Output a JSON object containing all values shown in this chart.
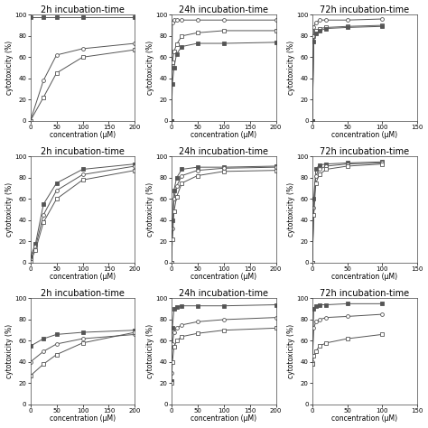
{
  "title_fontsize": 7,
  "axis_label_fontsize": 5.5,
  "tick_fontsize": 5,
  "figure_bg": "#ffffff",
  "rows": [
    {
      "cols": [
        {
          "title": "2h incubation-time",
          "xlabel": "concentration (μM)",
          "ylabel": "cytotoxicity (%)",
          "xlim": [
            0,
            200
          ],
          "ylim": [
            0,
            100
          ],
          "xticks": [
            0,
            50,
            100,
            150,
            200
          ],
          "yticks": [
            0,
            20,
            40,
            60,
            80,
            100
          ],
          "show_yticks": false,
          "series": [
            {
              "x": [
                0,
                25,
                50,
                100,
                200
              ],
              "y": [
                98,
                98,
                98,
                98,
                98
              ],
              "marker": "s",
              "filled": true,
              "color": "#555555",
              "linestyle": "-"
            },
            {
              "x": [
                0,
                25,
                50,
                100,
                200
              ],
              "y": [
                0,
                38,
                62,
                68,
                73
              ],
              "marker": "o",
              "filled": false,
              "color": "#555555",
              "linestyle": "-"
            },
            {
              "x": [
                0,
                25,
                50,
                100,
                200
              ],
              "y": [
                0,
                22,
                45,
                60,
                67
              ],
              "marker": "s",
              "filled": false,
              "color": "#555555",
              "linestyle": "-"
            }
          ]
        },
        {
          "title": "24h incubation-time",
          "xlabel": "concentration (μM)",
          "ylabel": "cytotoxicity (%)",
          "xlim": [
            0,
            200
          ],
          "ylim": [
            0,
            100
          ],
          "xticks": [
            0,
            50,
            100,
            150,
            200
          ],
          "yticks": [
            0,
            20,
            40,
            60,
            80,
            100
          ],
          "show_yticks": true,
          "series": [
            {
              "x": [
                0,
                2,
                5,
                10,
                20,
                50,
                100,
                200
              ],
              "y": [
                0,
                93,
                95,
                95,
                95,
                95,
                95,
                95
              ],
              "marker": "o",
              "filled": false,
              "color": "#555555",
              "linestyle": "-"
            },
            {
              "x": [
                0,
                2,
                5,
                10,
                20,
                50,
                100,
                200
              ],
              "y": [
                0,
                55,
                65,
                72,
                80,
                83,
                85,
                85
              ],
              "marker": "s",
              "filled": false,
              "color": "#555555",
              "linestyle": "-"
            },
            {
              "x": [
                0,
                2,
                5,
                10,
                20,
                50,
                100,
                200
              ],
              "y": [
                0,
                35,
                50,
                63,
                70,
                73,
                73,
                74
              ],
              "marker": "s",
              "filled": true,
              "color": "#555555",
              "linestyle": "-"
            }
          ]
        },
        {
          "title": "72h incubation-time",
          "xlabel": "concentration (μM)",
          "ylabel": "cytotoxicity (%)",
          "xlim": [
            0,
            150
          ],
          "ylim": [
            0,
            100
          ],
          "xticks": [
            0,
            50,
            100,
            150
          ],
          "yticks": [
            0,
            20,
            40,
            60,
            80,
            100
          ],
          "show_yticks": true,
          "series": [
            {
              "x": [
                0,
                2,
                5,
                10,
                20,
                50,
                100
              ],
              "y": [
                0,
                88,
                93,
                95,
                95,
                95,
                96
              ],
              "marker": "o",
              "filled": false,
              "color": "#555555",
              "linestyle": "-"
            },
            {
              "x": [
                0,
                2,
                5,
                10,
                20,
                50,
                100
              ],
              "y": [
                0,
                80,
                85,
                87,
                88,
                89,
                90
              ],
              "marker": "s",
              "filled": false,
              "color": "#555555",
              "linestyle": "-"
            },
            {
              "x": [
                0,
                2,
                5,
                10,
                20,
                50,
                100
              ],
              "y": [
                0,
                75,
                82,
                85,
                87,
                88,
                89
              ],
              "marker": "s",
              "filled": true,
              "color": "#555555",
              "linestyle": "-"
            }
          ]
        }
      ]
    },
    {
      "cols": [
        {
          "title": "2h incubation-time",
          "xlabel": "concentration (μM)",
          "ylabel": "cytotoxicity (%)",
          "xlim": [
            0,
            200
          ],
          "ylim": [
            0,
            100
          ],
          "xticks": [
            0,
            50,
            100,
            150,
            200
          ],
          "yticks": [
            0,
            20,
            40,
            60,
            80,
            100
          ],
          "show_yticks": false,
          "series": [
            {
              "x": [
                0,
                10,
                25,
                50,
                100,
                200
              ],
              "y": [
                5,
                18,
                55,
                75,
                88,
                93
              ],
              "marker": "s",
              "filled": true,
              "color": "#555555",
              "linestyle": "-"
            },
            {
              "x": [
                0,
                10,
                25,
                50,
                100,
                200
              ],
              "y": [
                3,
                15,
                45,
                68,
                83,
                91
              ],
              "marker": "o",
              "filled": false,
              "color": "#555555",
              "linestyle": "-"
            },
            {
              "x": [
                0,
                10,
                25,
                50,
                100,
                200
              ],
              "y": [
                1,
                12,
                38,
                60,
                78,
                87
              ],
              "marker": "s",
              "filled": false,
              "color": "#555555",
              "linestyle": "-"
            }
          ]
        },
        {
          "title": "24h incubation-time",
          "xlabel": "concentration (μM)",
          "ylabel": "cytotoxicity (%)",
          "xlim": [
            0,
            200
          ],
          "ylim": [
            0,
            100
          ],
          "xticks": [
            0,
            50,
            100,
            150,
            200
          ],
          "yticks": [
            0,
            20,
            40,
            60,
            80,
            100
          ],
          "show_yticks": true,
          "series": [
            {
              "x": [
                0,
                2,
                5,
                10,
                20,
                50,
                100,
                200
              ],
              "y": [
                0,
                40,
                68,
                80,
                88,
                90,
                90,
                91
              ],
              "marker": "s",
              "filled": true,
              "color": "#555555",
              "linestyle": "-"
            },
            {
              "x": [
                0,
                2,
                5,
                10,
                20,
                50,
                100,
                200
              ],
              "y": [
                0,
                32,
                60,
                72,
                82,
                87,
                89,
                90
              ],
              "marker": "o",
              "filled": false,
              "color": "#555555",
              "linestyle": "-"
            },
            {
              "x": [
                0,
                2,
                5,
                10,
                20,
                50,
                100,
                200
              ],
              "y": [
                0,
                22,
                48,
                62,
                75,
                82,
                86,
                87
              ],
              "marker": "s",
              "filled": false,
              "color": "#555555",
              "linestyle": "-"
            }
          ]
        },
        {
          "title": "72h incubation-time",
          "xlabel": "concentration (μM)",
          "ylabel": "cytotoxicity (%)",
          "xlim": [
            0,
            150
          ],
          "ylim": [
            0,
            100
          ],
          "xticks": [
            0,
            50,
            100,
            150
          ],
          "yticks": [
            0,
            20,
            40,
            60,
            80,
            100
          ],
          "show_yticks": true,
          "series": [
            {
              "x": [
                0,
                2,
                5,
                10,
                20,
                50,
                100
              ],
              "y": [
                0,
                60,
                88,
                92,
                93,
                94,
                95
              ],
              "marker": "s",
              "filled": true,
              "color": "#555555",
              "linestyle": "-"
            },
            {
              "x": [
                0,
                2,
                5,
                10,
                20,
                50,
                100
              ],
              "y": [
                0,
                52,
                82,
                88,
                91,
                93,
                94
              ],
              "marker": "o",
              "filled": false,
              "color": "#555555",
              "linestyle": "-"
            },
            {
              "x": [
                0,
                2,
                5,
                10,
                20,
                50,
                100
              ],
              "y": [
                0,
                45,
                75,
                83,
                88,
                91,
                93
              ],
              "marker": "s",
              "filled": false,
              "color": "#555555",
              "linestyle": "-"
            }
          ]
        }
      ]
    },
    {
      "cols": [
        {
          "title": "2h incubation-time",
          "xlabel": "concentration (μM)",
          "ylabel": "cytotoxicity (%)",
          "xlim": [
            0,
            200
          ],
          "ylim": [
            0,
            100
          ],
          "xticks": [
            0,
            50,
            100,
            150,
            200
          ],
          "yticks": [
            0,
            20,
            40,
            60,
            80,
            100
          ],
          "show_yticks": false,
          "series": [
            {
              "x": [
                0,
                25,
                50,
                100,
                200
              ],
              "y": [
                55,
                62,
                66,
                68,
                70
              ],
              "marker": "s",
              "filled": true,
              "color": "#555555",
              "linestyle": "-"
            },
            {
              "x": [
                0,
                25,
                50,
                100,
                200
              ],
              "y": [
                40,
                50,
                57,
                62,
                66
              ],
              "marker": "o",
              "filled": false,
              "color": "#555555",
              "linestyle": "-"
            },
            {
              "x": [
                0,
                25,
                50,
                100,
                200
              ],
              "y": [
                27,
                38,
                47,
                58,
                68
              ],
              "marker": "s",
              "filled": false,
              "color": "#555555",
              "linestyle": "-"
            }
          ]
        },
        {
          "title": "24h incubation-time",
          "xlabel": "concentration (μM)",
          "ylabel": "cytotoxicity (%)",
          "xlim": [
            0,
            200
          ],
          "ylim": [
            0,
            100
          ],
          "xticks": [
            0,
            50,
            100,
            150,
            200
          ],
          "yticks": [
            0,
            20,
            40,
            60,
            80,
            100
          ],
          "show_yticks": true,
          "series": [
            {
              "x": [
                0,
                2,
                5,
                10,
                20,
                50,
                100,
                200
              ],
              "y": [
                22,
                72,
                90,
                92,
                93,
                93,
                93,
                94
              ],
              "marker": "s",
              "filled": true,
              "color": "#555555",
              "linestyle": "-"
            },
            {
              "x": [
                0,
                2,
                5,
                10,
                20,
                50,
                100,
                200
              ],
              "y": [
                30,
                57,
                68,
                72,
                75,
                78,
                80,
                82
              ],
              "marker": "o",
              "filled": false,
              "color": "#555555",
              "linestyle": "-"
            },
            {
              "x": [
                0,
                2,
                5,
                10,
                20,
                50,
                100,
                200
              ],
              "y": [
                20,
                40,
                54,
                60,
                64,
                67,
                70,
                72
              ],
              "marker": "s",
              "filled": false,
              "color": "#555555",
              "linestyle": "-"
            }
          ]
        },
        {
          "title": "72h incubation-time",
          "xlabel": "concentration (μM)",
          "ylabel": "cytotoxicity (%)",
          "xlim": [
            0,
            150
          ],
          "ylim": [
            0,
            100
          ],
          "xticks": [
            0,
            50,
            100,
            150
          ],
          "yticks": [
            0,
            20,
            40,
            60,
            80,
            100
          ],
          "show_yticks": true,
          "series": [
            {
              "x": [
                0,
                2,
                5,
                10,
                20,
                50,
                100
              ],
              "y": [
                38,
                90,
                93,
                94,
                94,
                95,
                95
              ],
              "marker": "s",
              "filled": true,
              "color": "#555555",
              "linestyle": "-"
            },
            {
              "x": [
                0,
                2,
                5,
                10,
                20,
                50,
                100
              ],
              "y": [
                40,
                72,
                78,
                80,
                82,
                83,
                85
              ],
              "marker": "o",
              "filled": false,
              "color": "#555555",
              "linestyle": "-"
            },
            {
              "x": [
                0,
                2,
                5,
                10,
                20,
                50,
                100
              ],
              "y": [
                38,
                46,
                50,
                55,
                58,
                62,
                66
              ],
              "marker": "s",
              "filled": false,
              "color": "#555555",
              "linestyle": "-"
            }
          ]
        }
      ]
    }
  ]
}
